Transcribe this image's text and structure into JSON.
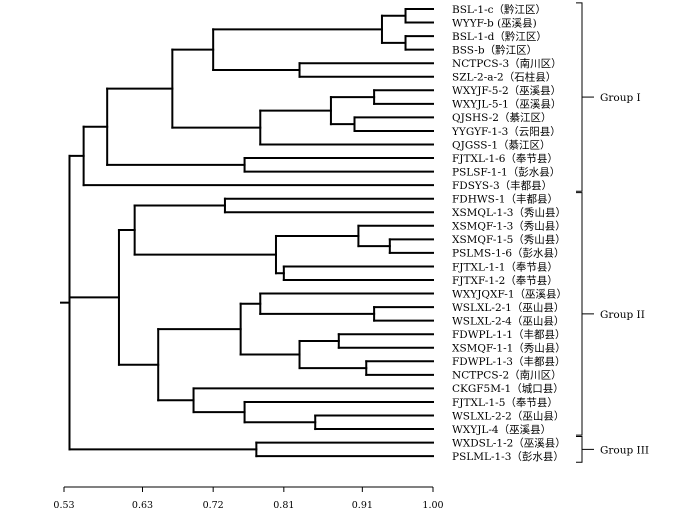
{
  "axis": {
    "ticks": [
      {
        "value": 0.53,
        "label": "0.53"
      },
      {
        "value": 0.63,
        "label": "0.63"
      },
      {
        "value": 0.72,
        "label": "0.72"
      },
      {
        "value": 0.81,
        "label": "0.81"
      },
      {
        "value": 0.91,
        "label": "0.91"
      },
      {
        "value": 1.0,
        "label": "1.00"
      }
    ],
    "range": [
      0.53,
      1.0
    ]
  },
  "leaves": [
    "BSL-1-c（黔江区）",
    "WYYF-b (巫溪县)",
    "BSL-1-d（黔江区）",
    "BSS-b（黔江区）",
    "NCTPCS-3（南川区）",
    "SZL-2-a-2（石柱县）",
    "WXYJF-5-2（巫溪县）",
    "WXYJL-5-1（巫溪县）",
    "QJSHS-2（綦江区）",
    "YYGYF-1-3（云阳县）",
    "QJGSS-1（綦江区）",
    "FJTXL-1-6（奉节县）",
    "PSLSF-1-1（彭水县）",
    "FDSYS-3（丰都县）",
    "FDHWS-1（丰都县）",
    "XSMQL-1-3（秀山县）",
    "XSMQF-1-3（秀山县）",
    "XSMQF-1-5（秀山县）",
    "PSLMS-1-6（彭水县）",
    "FJTXL-1-1（奉节县）",
    "FJTXF-1-2（奉节县）",
    "WXYJQXF-1（巫溪县）",
    "WSLXL-2-1（巫山县）",
    "WSLXL-2-4（巫山县）",
    "FDWPL-1-1（丰都县）",
    "XSMQF-1-1（秀山县）",
    "FDWPL-1-3（丰都县）",
    "NCTPCS-2（南川区）",
    "CKGF5M-1（城口县）",
    "FJTXL-1-5（奉节县）",
    "WSLXL-2-2（巫山县）",
    "WXYJL-4（巫溪县）",
    "WXDSL-1-2（巫溪县）",
    "PSLML-1-3（彭水县）"
  ],
  "groups": [
    {
      "label": "Group I",
      "first": 0,
      "last": 13
    },
    {
      "label": "Group II",
      "first": 14,
      "last": 31
    },
    {
      "label": "Group III",
      "first": 32,
      "last": 33
    }
  ],
  "tree": {
    "h": 0.537,
    "c": [
      {
        "h": 0.555,
        "c": [
          {
            "h": 0.585,
            "c": [
              {
                "h": 0.668,
                "c": [
                  {
                    "h": 0.72,
                    "c": [
                      {
                        "h": 0.935,
                        "c": [
                          {
                            "h": 0.965,
                            "c": [
                              {
                                "l": 0
                              },
                              {
                                "l": 1
                              }
                            ]
                          },
                          {
                            "h": 0.965,
                            "c": [
                              {
                                "l": 2
                              },
                              {
                                "l": 3
                              }
                            ]
                          }
                        ]
                      },
                      {
                        "h": 0.83,
                        "c": [
                          {
                            "l": 4
                          },
                          {
                            "l": 5
                          }
                        ]
                      }
                    ]
                  },
                  {
                    "h": 0.78,
                    "c": [
                      {
                        "h": 0.87,
                        "c": [
                          {
                            "h": 0.925,
                            "c": [
                              {
                                "l": 6
                              },
                              {
                                "l": 7
                              }
                            ]
                          },
                          {
                            "h": 0.9,
                            "c": [
                              {
                                "l": 8
                              },
                              {
                                "l": 9
                              }
                            ]
                          }
                        ]
                      },
                      {
                        "l": 10
                      }
                    ]
                  }
                ]
              },
              {
                "h": 0.76,
                "c": [
                  {
                    "l": 11
                  },
                  {
                    "l": 12
                  }
                ]
              }
            ]
          },
          {
            "l": 13
          }
        ]
      },
      {
        "h": 0.6,
        "c": [
          {
            "h": 0.62,
            "c": [
              {
                "h": 0.735,
                "c": [
                  {
                    "l": 14
                  },
                  {
                    "l": 15
                  }
                ]
              },
              {
                "h": 0.8,
                "c": [
                  {
                    "h": 0.905,
                    "c": [
                      {
                        "l": 16
                      },
                      {
                        "h": 0.945,
                        "c": [
                          {
                            "l": 17
                          },
                          {
                            "l": 18
                          }
                        ]
                      }
                    ]
                  },
                  {
                    "h": 0.81,
                    "c": [
                      {
                        "l": 19
                      },
                      {
                        "l": 20
                      }
                    ]
                  }
                ]
              }
            ]
          },
          {
            "h": 0.65,
            "c": [
              {
                "h": 0.755,
                "c": [
                  {
                    "h": 0.78,
                    "c": [
                      {
                        "l": 21
                      },
                      {
                        "h": 0.925,
                        "c": [
                          {
                            "l": 22
                          },
                          {
                            "l": 23
                          }
                        ]
                      }
                    ]
                  },
                  {
                    "h": 0.83,
                    "c": [
                      {
                        "h": 0.88,
                        "c": [
                          {
                            "l": 24
                          },
                          {
                            "l": 25
                          }
                        ]
                      },
                      {
                        "h": 0.915,
                        "c": [
                          {
                            "l": 26
                          },
                          {
                            "l": 27
                          }
                        ]
                      }
                    ]
                  }
                ]
              },
              {
                "h": 0.695,
                "c": [
                  {
                    "l": 28
                  },
                  {
                    "h": 0.76,
                    "c": [
                      {
                        "l": 29
                      },
                      {
                        "h": 0.85,
                        "c": [
                          {
                            "l": 30
                          },
                          {
                            "l": 31
                          }
                        ]
                      }
                    ]
                  }
                ]
              }
            ]
          }
        ]
      },
      {
        "h": 0.775,
        "c": [
          {
            "l": 32
          },
          {
            "l": 33
          }
        ]
      }
    ]
  }
}
